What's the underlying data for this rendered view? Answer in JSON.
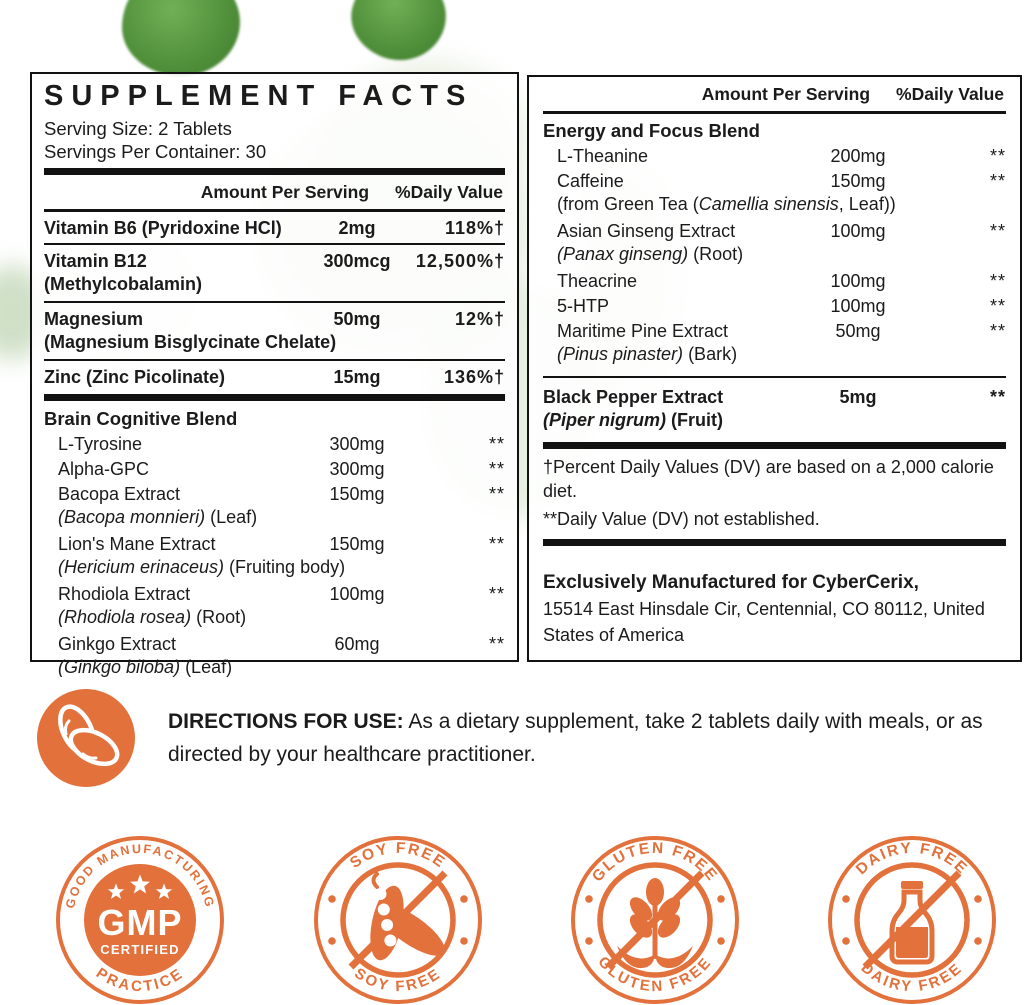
{
  "colors": {
    "orange": "#E2713C",
    "ink": "#1B1B1B",
    "leaf_green": "#4C8A38"
  },
  "supplement_facts": {
    "title": "SUPPLEMENT FACTS",
    "serving_size": "Serving Size: 2 Tablets",
    "servings_per_container": "Servings Per Container: 30",
    "columns": {
      "amount": "Amount Per Serving",
      "daily_value": "%Daily Value"
    },
    "main_rows": [
      {
        "name": "Vitamin B6 (Pyridoxine HCl)",
        "amount": "2mg",
        "dv": "118%†"
      },
      {
        "name": "Vitamin B12",
        "sub": [
          {
            "t": "(Methylcobalamin)",
            "s": "b"
          }
        ],
        "amount": "300mcg",
        "dv": "12,500%†"
      },
      {
        "name": "Magnesium",
        "sub": [
          {
            "t": "(Magnesium Bisglycinate Chelate)",
            "s": "b"
          }
        ],
        "amount": "50mg",
        "dv": "12%†"
      },
      {
        "name": "Zinc (Zinc Picolinate)",
        "amount": "15mg",
        "dv": "136%†"
      }
    ],
    "brain_blend": {
      "title": "Brain Cognitive Blend",
      "items": [
        {
          "name": "L-Tyrosine",
          "amount": "300mg",
          "dv": "**"
        },
        {
          "name": "Alpha-GPC",
          "amount": "300mg",
          "dv": "**"
        },
        {
          "name": "Bacopa Extract",
          "amount": "150mg",
          "dv": "**",
          "sub": [
            {
              "t": "(Bacopa monnieri)",
              "s": "i"
            },
            {
              "t": " (Leaf)"
            }
          ]
        },
        {
          "name": "Lion's Mane Extract",
          "amount": "150mg",
          "dv": "**",
          "sub": [
            {
              "t": "(Hericium erinaceus)",
              "s": "i"
            },
            {
              "t": " (Fruiting body)"
            }
          ]
        },
        {
          "name": "Rhodiola Extract",
          "amount": "100mg",
          "dv": "**",
          "sub": [
            {
              "t": "(Rhodiola rosea)",
              "s": "i"
            },
            {
              "t": " (Root)"
            }
          ]
        },
        {
          "name": "Ginkgo Extract",
          "amount": "60mg",
          "dv": "**",
          "sub": [
            {
              "t": "(Ginkgo biloba)",
              "s": "i"
            },
            {
              "t": " (Leaf)"
            }
          ]
        }
      ]
    }
  },
  "right_panel": {
    "columns": {
      "amount": "Amount Per Serving",
      "daily_value": "%Daily Value"
    },
    "energy_blend": {
      "title": "Energy and Focus Blend",
      "items": [
        {
          "name": "L-Theanine",
          "amount": "200mg",
          "dv": "**"
        },
        {
          "name": "Caffeine",
          "amount": "150mg",
          "dv": "**",
          "sub": [
            {
              "t": "(from Green Tea ("
            },
            {
              "t": "Camellia sinensis",
              "s": "i"
            },
            {
              "t": ", Leaf))"
            }
          ]
        },
        {
          "name": "Asian Ginseng Extract",
          "amount": "100mg",
          "dv": "**",
          "sub": [
            {
              "t": "(Panax ginseng)",
              "s": "i"
            },
            {
              "t": " (Root)"
            }
          ]
        },
        {
          "name": "Theacrine",
          "amount": "100mg",
          "dv": "**"
        },
        {
          "name": "5-HTP",
          "amount": "100mg",
          "dv": "**"
        },
        {
          "name": "Maritime Pine Extract",
          "amount": "50mg",
          "dv": "**",
          "sub": [
            {
              "t": "(Pinus pinaster)",
              "s": "i"
            },
            {
              "t": " (Bark)"
            }
          ]
        }
      ]
    },
    "black_pepper": {
      "name": "Black Pepper Extract",
      "amount": "5mg",
      "dv": "**",
      "sub": [
        {
          "t": "(Piper nigrum)",
          "s": "bi"
        },
        {
          "t": " (Fruit)",
          "s": "b"
        }
      ]
    },
    "footnotes": [
      "†Percent Daily Values (DV) are based on a 2,000 calorie diet.",
      "**Daily Value (DV) not established."
    ],
    "manufacturer": {
      "bold_line": "Exclusively Manufactured for CyberCerix,",
      "address": "15514 East Hinsdale Cir, Centennial, CO 80112, United States of America"
    }
  },
  "directions": {
    "label": "DIRECTIONS FOR USE:",
    "text": " As a dietary supplement, take 2 tablets daily with meals, or as directed by your healthcare practitioner."
  },
  "badges": [
    {
      "id": "gmp",
      "arc_top": "GOOD MANUFACTURING",
      "arc_bottom": "PRACTICE",
      "center": "GMP",
      "center_sub": "CERTIFIED",
      "icon": "stars"
    },
    {
      "id": "soy-free",
      "arc_top": "SOY FREE",
      "arc_bottom": "SOY FREE",
      "icon": "soy-pod"
    },
    {
      "id": "gluten-free",
      "arc_top": "GLUTEN FREE",
      "arc_bottom": "GLUTEN FREE",
      "icon": "wheat"
    },
    {
      "id": "dairy-free",
      "arc_top": "DAIRY FREE",
      "arc_bottom": "DAIRY FREE",
      "icon": "milk-bottle"
    }
  ]
}
